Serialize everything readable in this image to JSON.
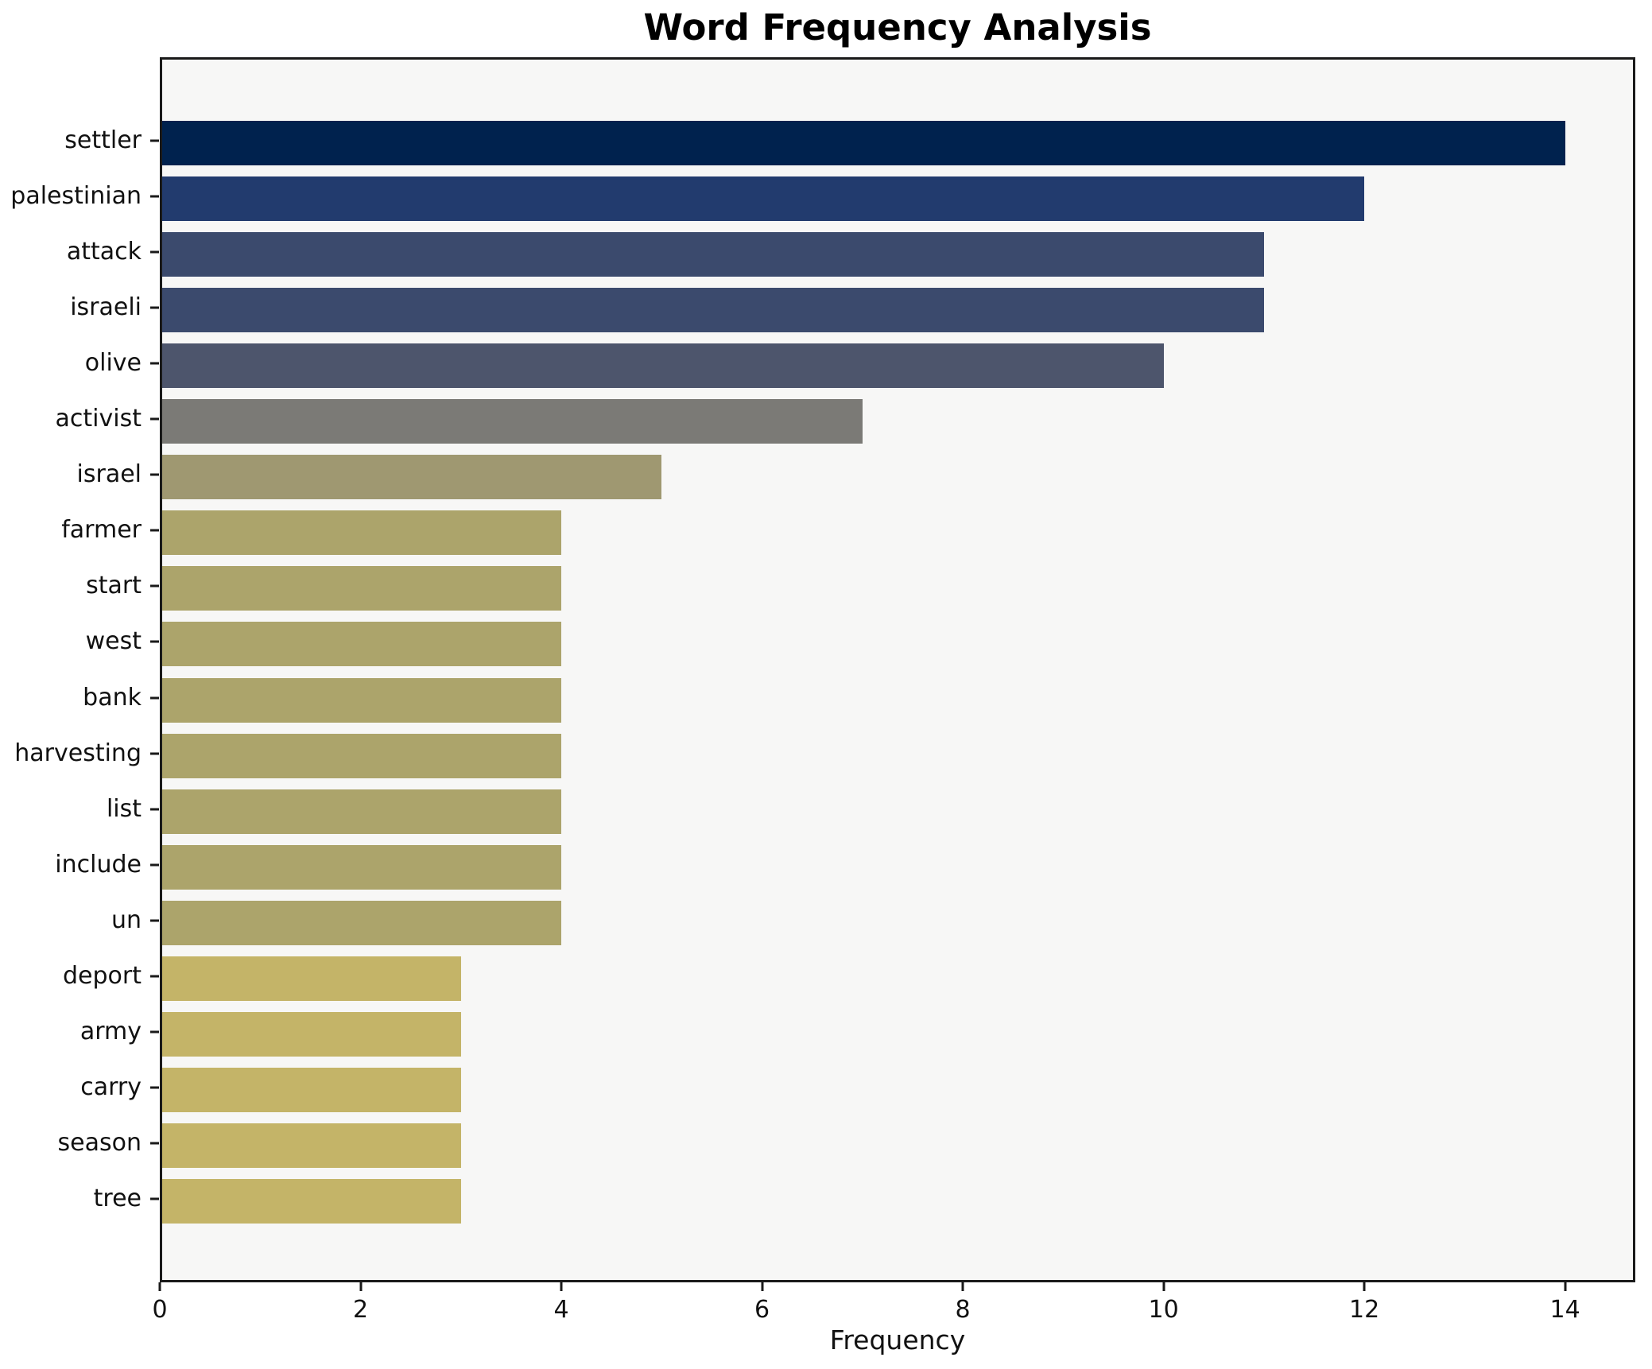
{
  "title": "Word Frequency Analysis",
  "xlabel": "Frequency",
  "chart_data": {
    "type": "bar",
    "orientation": "horizontal",
    "title": "Word Frequency Analysis",
    "xlabel": "Frequency",
    "ylabel": "",
    "categories": [
      "settler",
      "palestinian",
      "attack",
      "israeli",
      "olive",
      "activist",
      "israel",
      "farmer",
      "start",
      "west",
      "bank",
      "harvesting",
      "list",
      "include",
      "un",
      "deport",
      "army",
      "carry",
      "season",
      "tree"
    ],
    "values": [
      14,
      12,
      11,
      11,
      10,
      7,
      5,
      4,
      4,
      4,
      4,
      4,
      4,
      4,
      4,
      3,
      3,
      3,
      3,
      3
    ],
    "bar_colors": [
      "#00224e",
      "#223b6e",
      "#3b4a6d",
      "#3b4a6d",
      "#4d556c",
      "#7b7a76",
      "#9f9871",
      "#aca46b",
      "#aca46b",
      "#aca46b",
      "#aca46b",
      "#aca46b",
      "#aca46b",
      "#aca46b",
      "#aca46b",
      "#c4b468",
      "#c4b468",
      "#c4b468",
      "#c4b468",
      "#c4b468"
    ],
    "xlim": [
      0,
      14.7
    ],
    "xticks": [
      0,
      2,
      4,
      6,
      8,
      10,
      12,
      14
    ],
    "grid": false,
    "legend": "none",
    "plot_background": "#f7f7f6",
    "figure_background": "#ffffff",
    "spine_color": "#1a1a1a",
    "text_color": "#111111"
  }
}
